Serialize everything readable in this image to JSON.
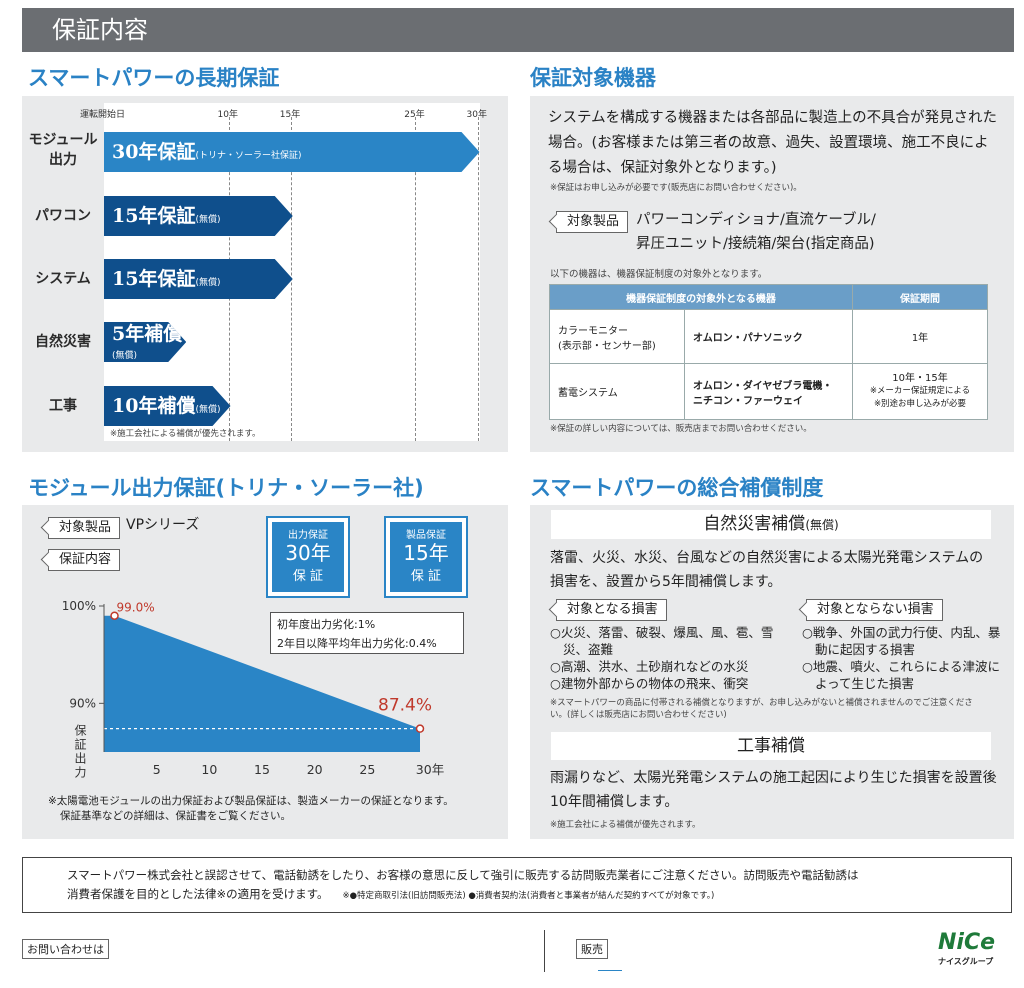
{
  "header": {
    "title": "保証内容"
  },
  "warranty": {
    "title": "スマートパワーの長期保証",
    "axis": {
      "start": "運転開始日",
      "ticks": [
        "10年",
        "15年",
        "25年",
        "30年"
      ]
    },
    "rows": [
      {
        "label": "モジュール\n出力",
        "years": 30,
        "text": "30年保証",
        "sub": "(トリナ・ソーラー社保証)"
      },
      {
        "label": "パワコン",
        "years": 15,
        "text": "15年保証",
        "sub": "(無償)"
      },
      {
        "label": "システム",
        "years": 15,
        "text": "15年保証",
        "sub": "(無償)"
      },
      {
        "label": "自然災害",
        "years": 5,
        "text": "5年補償",
        "sub": "(無償)"
      },
      {
        "label": "工事",
        "years": 10,
        "text": "10年補償",
        "sub": "(無償)"
      }
    ],
    "note": "※施工会社による補償が優先されます。"
  },
  "target": {
    "title": "保証対象機器",
    "body": "システムを構成する機器または各部品に製造上の不具合が発見された場合。(お客様または第三者の故意、過失、設置環境、施工不良による場合は、保証対象外となります。)",
    "note1": "※保証はお申し込みが必要です(販売店にお問い合わせください)。",
    "tag": "対象製品",
    "products_line1": "パワーコンディショナ/直流ケーブル/",
    "products_line2": "昇圧ユニット/接続箱/架台(指定商品)",
    "excluded_intro": "以下の機器は、機器保証制度の対象外となります。",
    "table": {
      "head": [
        "機器保証制度の対象外となる機器",
        "保証期間"
      ],
      "rows": [
        {
          "name": "カラーモニター\n(表示部・センサー部)",
          "maker": "オムロン・パナソニック",
          "period": "1年"
        },
        {
          "name": "蓄電システム",
          "maker": "オムロン・ダイヤゼブラ電機・\nニチコン・ファーウェイ",
          "period": "10年・15年",
          "period_note": "※メーカー保証規定による\n※別途お申し込みが必要"
        }
      ]
    },
    "note2": "※保証の詳しい内容については、販売店までお問い合わせください。"
  },
  "module": {
    "title": "モジュール出力保証(トリナ・ソーラー社)",
    "tag_product": "対象製品",
    "product": "VPシリーズ",
    "tag_content": "保証内容",
    "badge1": {
      "top": "出力保証",
      "big": "30年",
      "bottom": "保 証"
    },
    "badge2": {
      "top": "製品保証",
      "big": "15年",
      "bottom": "保 証"
    },
    "info_line1": "初年度出力劣化:1%",
    "info_line2": "2年目以降平均年出力劣化:0.4%",
    "note_line1": "※太陽電池モジュールの出力保証および製品保証は、製造メーカーの保証となります。",
    "note_line2": "保証基準などの詳細は、保証書をご覧ください。"
  },
  "chart_data": {
    "type": "area",
    "x": [
      1,
      30
    ],
    "values": [
      99.0,
      87.4
    ],
    "point_labels": [
      "99.0%",
      "87.4%"
    ],
    "ylabel": "保証出力",
    "y_ticks": [
      "100%",
      "90%"
    ],
    "x_ticks": [
      "5",
      "10",
      "15",
      "20",
      "25",
      "30年"
    ],
    "xlim": [
      0,
      30
    ],
    "ylim": [
      85,
      100
    ]
  },
  "comp": {
    "title": "スマートパワーの総合補償制度",
    "disaster": {
      "title": "自然災害補償",
      "title_sub": "(無償)",
      "body": "落雷、火災、水災、台風などの自然災害による太陽光発電システムの損害を、設置から5年間補償します。",
      "tag_in": "対象となる損害",
      "tag_out": "対象とならない損害",
      "in_items": [
        "○火災、落雷、破裂、爆風、風、雹、雪災、盗難",
        "○高潮、洪水、土砂崩れなどの水災",
        "○建物外部からの物体の飛来、衝突"
      ],
      "out_items": [
        "○戦争、外国の武力行使、内乱、暴動に起因する損害",
        "○地震、噴火、これらによる津波によって生じた損害"
      ],
      "note": "※スマートパワーの商品に付帯される補償となりますが、お申し込みがないと補償されませんのでご注意ください。(詳しくは販売店にお問い合わせください)"
    },
    "work": {
      "title": "工事補償",
      "body": "雨漏りなど、太陽光発電システムの施工起因により生じた損害を設置後10年間補償します。",
      "note": "※施工会社による補償が優先されます。"
    }
  },
  "notice": {
    "line1": "スマートパワー株式会社と誤認させて、電話勧誘をしたり、お客様の意思に反して強引に販売する訪問販売業者にご注意ください。訪問販売や電話勧誘は",
    "line2": "消費者保護を目的とした法律※の適用を受けます。",
    "line2_small": "※●特定商取引法(旧訪問販売法) ●消費者契約法(消費者と事業者が結んだ契約すべてが対象です。)"
  },
  "footer": {
    "contact": "お問い合わせは",
    "seller": "販売",
    "logo": "NiCe",
    "logo_sub": "ナイスグループ"
  }
}
